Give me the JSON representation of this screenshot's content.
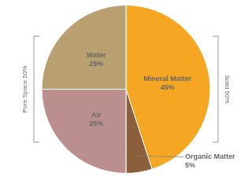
{
  "chart_data": {
    "type": "pie",
    "categories": [
      "Mineral Matter",
      "Organic Matter",
      "Air",
      "Water"
    ],
    "values": [
      45,
      5,
      25,
      25
    ],
    "value_labels": [
      "45%",
      "5%",
      "25%",
      "25%"
    ],
    "colors": [
      "#F5A623",
      "#8B5E3C",
      "#BC8F8F",
      "#B8A070"
    ],
    "data_labels": true,
    "annotations": [
      "Pore Space 50%",
      "Solid 50%"
    ]
  }
}
